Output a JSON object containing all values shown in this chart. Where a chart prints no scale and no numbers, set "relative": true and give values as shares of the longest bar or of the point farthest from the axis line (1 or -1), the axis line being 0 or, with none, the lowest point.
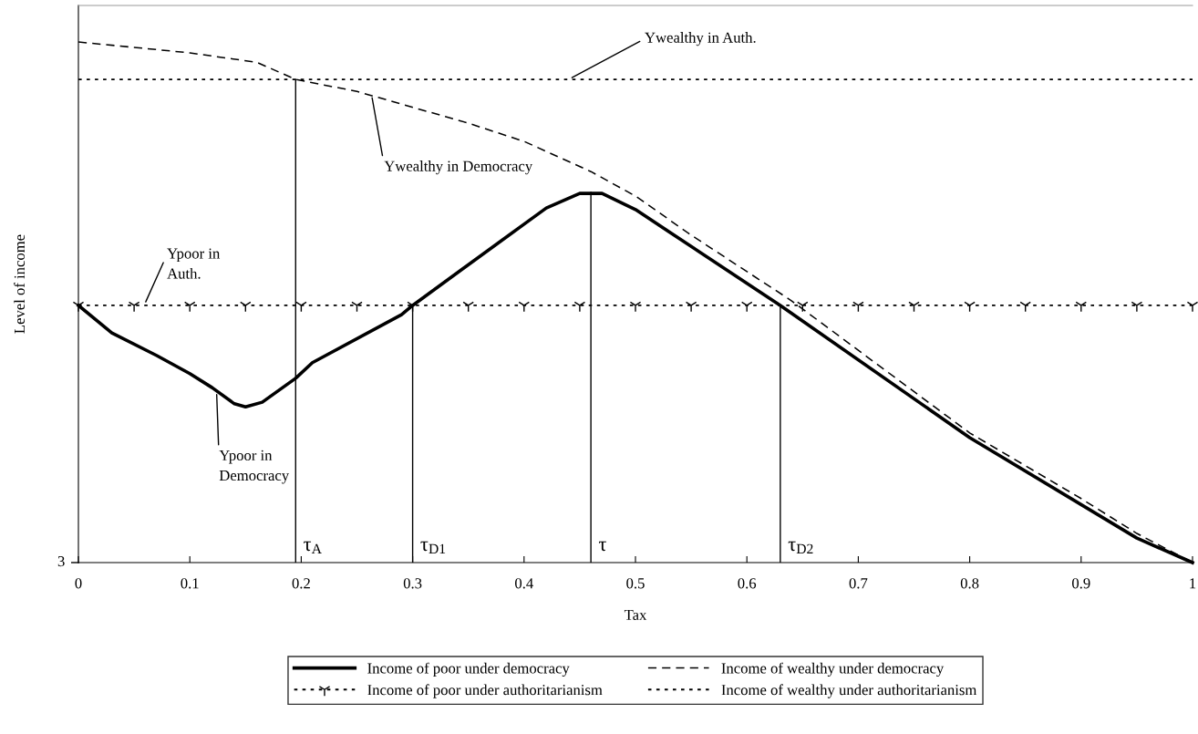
{
  "chart_data": {
    "type": "line",
    "relative": true,
    "xlabel": "Tax",
    "ylabel": "Level of income",
    "xlim": [
      0,
      1
    ],
    "xticks": [
      0,
      0.1,
      0.2,
      0.3,
      0.4,
      0.5,
      0.6,
      0.7,
      0.8,
      0.9,
      1
    ],
    "legend": "bottom",
    "grid": false,
    "series": [
      {
        "name": "Income of poor under democracy",
        "color": "#000000",
        "line_style": "solid",
        "marker": "none",
        "x": [
          0,
          0.03,
          0.07,
          0.1,
          0.12,
          0.14,
          0.15,
          0.165,
          0.195,
          0.21,
          0.29,
          0.3,
          0.4,
          0.42,
          0.45,
          0.47,
          0.5,
          0.63,
          0.8,
          0.95,
          1
        ],
        "values": [
          0.494,
          0.441,
          0.398,
          0.363,
          0.336,
          0.305,
          0.299,
          0.308,
          0.354,
          0.384,
          0.476,
          0.494,
          0.65,
          0.681,
          0.709,
          0.709,
          0.678,
          0.494,
          0.24,
          0.047,
          0
        ]
      },
      {
        "name": "Income of poor under authoritarianism",
        "color": "#000000",
        "line_style": "dotted",
        "marker": "cross",
        "x": [
          0,
          0.05,
          0.1,
          0.15,
          0.2,
          0.25,
          0.3,
          0.35,
          0.4,
          0.45,
          0.5,
          0.55,
          0.6,
          0.65,
          0.7,
          0.75,
          0.8,
          0.85,
          0.9,
          0.95,
          1
        ],
        "values": [
          0.494,
          0.494,
          0.494,
          0.494,
          0.494,
          0.494,
          0.494,
          0.494,
          0.494,
          0.494,
          0.494,
          0.494,
          0.494,
          0.494,
          0.494,
          0.494,
          0.494,
          0.494,
          0.494,
          0.494,
          0.494
        ]
      },
      {
        "name": "Income of wealthy under democracy",
        "color": "#000000",
        "line_style": "dashed",
        "marker": "none",
        "x": [
          0,
          0.1,
          0.16,
          0.195,
          0.25,
          0.35,
          0.4,
          0.46,
          0.5,
          0.55,
          0.64,
          0.8,
          0.9,
          0.95,
          1
        ],
        "values": [
          1.0,
          0.979,
          0.961,
          0.928,
          0.905,
          0.844,
          0.809,
          0.751,
          0.704,
          0.629,
          0.503,
          0.249,
          0.123,
          0.056,
          0
        ]
      },
      {
        "name": "Income of wealthy under authoritarianism",
        "color": "#000000",
        "line_style": "dotted",
        "marker": "none",
        "x": [
          0,
          1
        ],
        "values": [
          0.928,
          0.928
        ]
      }
    ],
    "annotations": [
      {
        "text": "τ$_{A}$",
        "x": 0.195,
        "y": 0.928
      },
      {
        "text": "τ$_{D1}$",
        "x": 0.3,
        "y": 0.494
      },
      {
        "text": "τ",
        "x": 0.46,
        "y": 0.711
      },
      {
        "text": "τ$_{D2}$",
        "x": 0.63,
        "y": 0.494
      },
      {
        "text": "Ywealthy in Auth.",
        "x": 0.44,
        "y": 0.928
      },
      {
        "text": "Ywealthy in Democracy",
        "x": 0.263,
        "y": 0.9
      },
      {
        "text": "Ypoor in\nAuth.",
        "x": 0.059,
        "y": 0.494
      },
      {
        "text": "Ypoor in\nDemocracy",
        "x": 0.124,
        "y": 0.33
      },
      "3"
    ]
  }
}
